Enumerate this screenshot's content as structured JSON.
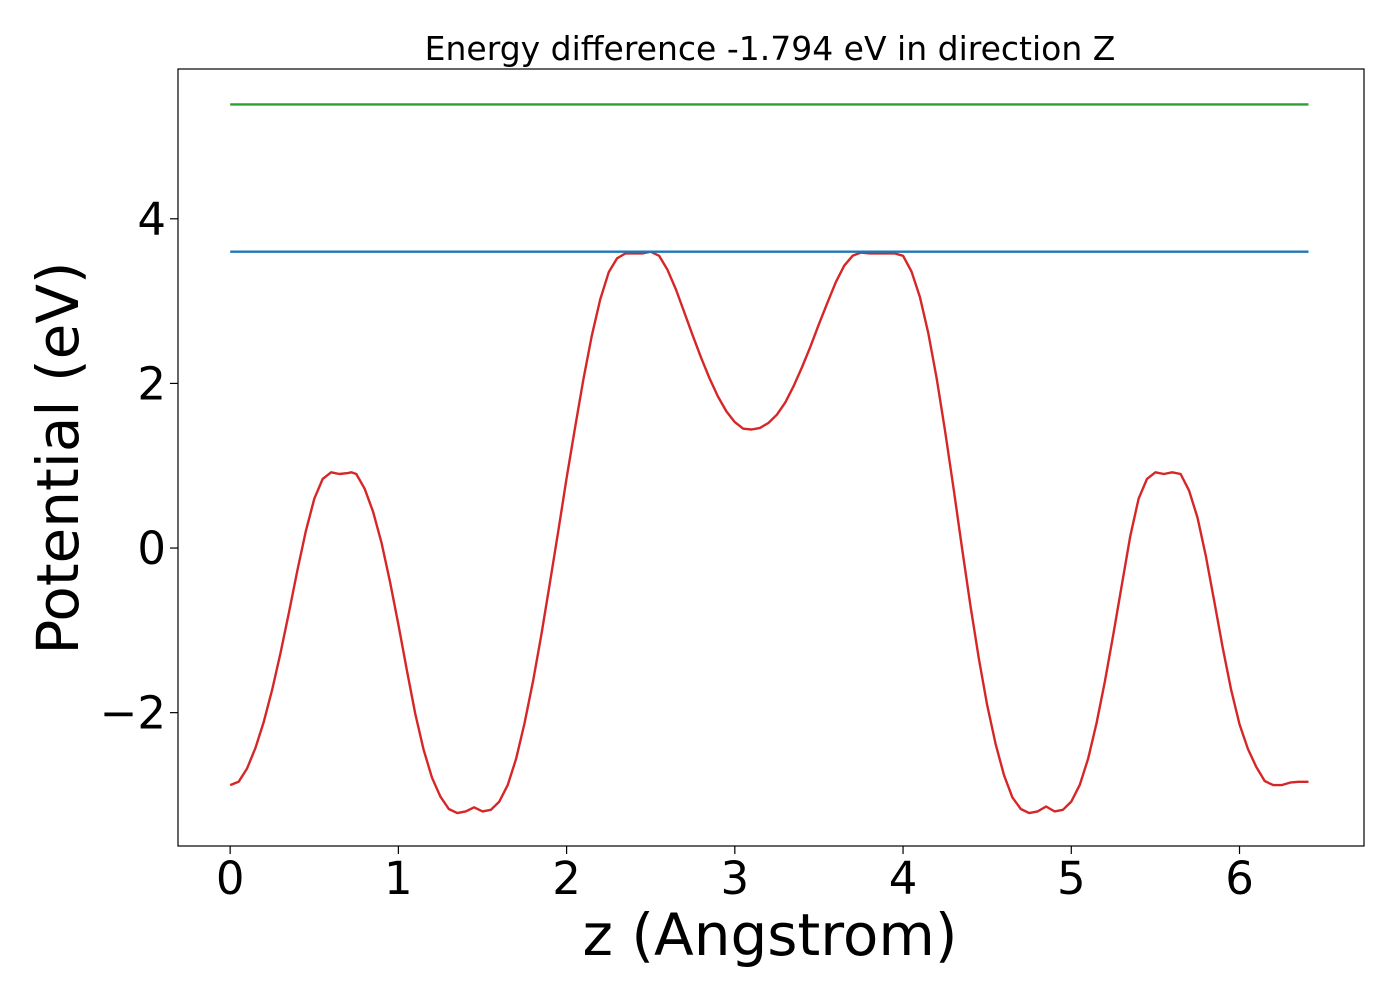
{
  "chart_data": {
    "type": "line",
    "title": "Energy difference -1.794 eV in direction Z",
    "xlabel": "z (Angstrom)",
    "ylabel": "Potential (eV)",
    "xlim": [
      -0.31,
      6.74
    ],
    "ylim": [
      -3.62,
      5.82
    ],
    "xticks": [
      0,
      1,
      2,
      3,
      4,
      5,
      6
    ],
    "xtick_labels": [
      "0",
      "1",
      "2",
      "3",
      "4",
      "5",
      "6"
    ],
    "yticks": [
      -2,
      0,
      2,
      4
    ],
    "ytick_labels": [
      "−2",
      "0",
      "2",
      "4"
    ],
    "grid": false,
    "legend": "none",
    "series": [
      {
        "color": "#d62728",
        "x": [
          0.0,
          0.05,
          0.1,
          0.15,
          0.2,
          0.25,
          0.3,
          0.35,
          0.4,
          0.45,
          0.5,
          0.55,
          0.6,
          0.65,
          0.7,
          0.72,
          0.75,
          0.8,
          0.85,
          0.9,
          0.95,
          1.0,
          1.05,
          1.1,
          1.15,
          1.2,
          1.25,
          1.3,
          1.35,
          1.4,
          1.45,
          1.5,
          1.55,
          1.6,
          1.65,
          1.7,
          1.75,
          1.8,
          1.85,
          1.9,
          1.95,
          2.0,
          2.05,
          2.1,
          2.15,
          2.2,
          2.25,
          2.3,
          2.35,
          2.4,
          2.45,
          2.5,
          2.55,
          2.6,
          2.65,
          2.7,
          2.75,
          2.8,
          2.85,
          2.9,
          2.95,
          3.0,
          3.05,
          3.1,
          3.15,
          3.2,
          3.25,
          3.3,
          3.35,
          3.4,
          3.45,
          3.5,
          3.55,
          3.6,
          3.65,
          3.7,
          3.75,
          3.8,
          3.85,
          3.9,
          3.95,
          4.0,
          4.05,
          4.1,
          4.15,
          4.2,
          4.25,
          4.3,
          4.35,
          4.4,
          4.45,
          4.5,
          4.55,
          4.6,
          4.65,
          4.7,
          4.75,
          4.8,
          4.85,
          4.9,
          4.95,
          5.0,
          5.05,
          5.1,
          5.15,
          5.2,
          5.25,
          5.3,
          5.35,
          5.4,
          5.45,
          5.5,
          5.55,
          5.6,
          5.65,
          5.7,
          5.75,
          5.8,
          5.85,
          5.9,
          5.95,
          6.0,
          6.05,
          6.1,
          6.15,
          6.2,
          6.25,
          6.3,
          6.35,
          6.41
        ],
        "y": [
          -2.88,
          -2.84,
          -2.68,
          -2.43,
          -2.11,
          -1.72,
          -1.27,
          -0.78,
          -0.27,
          0.21,
          0.6,
          0.84,
          0.92,
          0.9,
          0.91,
          0.92,
          0.9,
          0.72,
          0.44,
          0.06,
          -0.41,
          -0.93,
          -1.48,
          -2.01,
          -2.45,
          -2.79,
          -3.02,
          -3.17,
          -3.22,
          -3.2,
          -3.15,
          -3.2,
          -3.18,
          -3.08,
          -2.88,
          -2.56,
          -2.13,
          -1.62,
          -1.05,
          -0.43,
          0.2,
          0.85,
          1.46,
          2.05,
          2.58,
          3.02,
          3.35,
          3.52,
          3.58,
          3.58,
          3.58,
          3.6,
          3.55,
          3.38,
          3.14,
          2.86,
          2.58,
          2.31,
          2.06,
          1.84,
          1.66,
          1.53,
          1.45,
          1.44,
          1.46,
          1.52,
          1.62,
          1.77,
          1.97,
          2.2,
          2.45,
          2.72,
          2.98,
          3.23,
          3.43,
          3.55,
          3.59,
          3.58,
          3.58,
          3.58,
          3.58,
          3.55,
          3.36,
          3.05,
          2.61,
          2.06,
          1.42,
          0.73,
          0.01,
          -0.69,
          -1.34,
          -1.91,
          -2.38,
          -2.76,
          -3.03,
          -3.17,
          -3.22,
          -3.2,
          -3.14,
          -3.2,
          -3.18,
          -3.08,
          -2.88,
          -2.56,
          -2.13,
          -1.62,
          -1.05,
          -0.45,
          0.14,
          0.6,
          0.84,
          0.92,
          0.9,
          0.92,
          0.9,
          0.7,
          0.37,
          -0.1,
          -0.65,
          -1.21,
          -1.72,
          -2.14,
          -2.44,
          -2.66,
          -2.83,
          -2.88,
          -2.88,
          -2.85,
          -2.84,
          -2.84
        ]
      },
      {
        "color": "#1f77b4",
        "x": [
          0.0,
          6.41
        ],
        "y": [
          3.6,
          3.6
        ]
      },
      {
        "color": "#2ca02c",
        "x": [
          0.0,
          6.41
        ],
        "y": [
          5.39,
          5.39
        ]
      }
    ]
  }
}
